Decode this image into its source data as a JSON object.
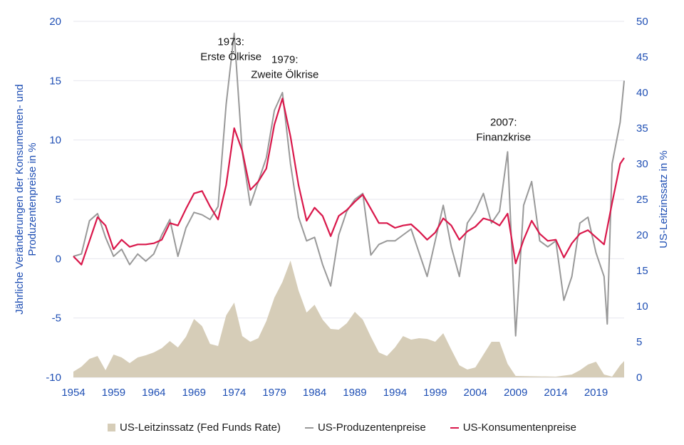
{
  "chart_data": {
    "type": "line",
    "x_range": [
      1954,
      2022.5
    ],
    "x_ticks": [
      "1954",
      "1959",
      "1964",
      "1969",
      "1974",
      "1979",
      "1984",
      "1989",
      "1994",
      "1999",
      "2004",
      "2009",
      "2014",
      "2019"
    ],
    "y_left": {
      "label": "Jährliche Veränderungen der Konsumenten- und Produzentenpreise in %",
      "lim": [
        -10,
        20
      ],
      "ticks": [
        "-10",
        "-5",
        "0",
        "5",
        "10",
        "15",
        "20"
      ]
    },
    "y_right": {
      "label": "US-Leitzinssatz in %",
      "lim": [
        0,
        50
      ],
      "ticks": [
        "0",
        "5",
        "10",
        "15",
        "20",
        "25",
        "30",
        "35",
        "40",
        "45",
        "50"
      ]
    },
    "colors": {
      "axis_text": "#1f4fb4",
      "area": "#d6cdb8",
      "ppi": "#999999",
      "cpi": "#d9184b",
      "grid": "#e6e6ee"
    },
    "legend_position": "bottom",
    "series": [
      {
        "name": "US-Leitzinssatz (Fed Funds Rate)",
        "axis": "right",
        "style": "area",
        "points": [
          [
            1954,
            0.8
          ],
          [
            1955,
            1.5
          ],
          [
            1956,
            2.6
          ],
          [
            1957,
            3.0
          ],
          [
            1958,
            1.0
          ],
          [
            1959,
            3.2
          ],
          [
            1960,
            2.8
          ],
          [
            1961,
            2.0
          ],
          [
            1962,
            2.8
          ],
          [
            1963,
            3.1
          ],
          [
            1964,
            3.5
          ],
          [
            1965,
            4.1
          ],
          [
            1966,
            5.1
          ],
          [
            1967,
            4.2
          ],
          [
            1968,
            5.7
          ],
          [
            1969,
            8.2
          ],
          [
            1970,
            7.2
          ],
          [
            1971,
            4.7
          ],
          [
            1972,
            4.4
          ],
          [
            1973,
            8.7
          ],
          [
            1974,
            10.5
          ],
          [
            1975,
            5.8
          ],
          [
            1976,
            5.0
          ],
          [
            1977,
            5.5
          ],
          [
            1978,
            7.9
          ],
          [
            1979,
            11.2
          ],
          [
            1980,
            13.4
          ],
          [
            1981,
            16.4
          ],
          [
            1982,
            12.2
          ],
          [
            1983,
            9.1
          ],
          [
            1984,
            10.2
          ],
          [
            1985,
            8.1
          ],
          [
            1986,
            6.8
          ],
          [
            1987,
            6.7
          ],
          [
            1988,
            7.6
          ],
          [
            1989,
            9.2
          ],
          [
            1990,
            8.1
          ],
          [
            1991,
            5.7
          ],
          [
            1992,
            3.5
          ],
          [
            1993,
            3.0
          ],
          [
            1994,
            4.2
          ],
          [
            1995,
            5.8
          ],
          [
            1996,
            5.3
          ],
          [
            1997,
            5.5
          ],
          [
            1998,
            5.4
          ],
          [
            1999,
            5.0
          ],
          [
            2000,
            6.2
          ],
          [
            2001,
            3.9
          ],
          [
            2002,
            1.7
          ],
          [
            2003,
            1.1
          ],
          [
            2004,
            1.4
          ],
          [
            2005,
            3.2
          ],
          [
            2006,
            5.0
          ],
          [
            2007,
            5.0
          ],
          [
            2008,
            1.9
          ],
          [
            2009,
            0.2
          ],
          [
            2014,
            0.1
          ],
          [
            2016,
            0.4
          ],
          [
            2017,
            1.0
          ],
          [
            2018,
            1.8
          ],
          [
            2019,
            2.2
          ],
          [
            2020,
            0.4
          ],
          [
            2021,
            0.1
          ],
          [
            2022,
            1.7
          ],
          [
            2022.5,
            2.3
          ]
        ]
      },
      {
        "name": "US-Produzentenpreise",
        "axis": "left",
        "style": "line",
        "points": [
          [
            1954,
            0.2
          ],
          [
            1955,
            0.4
          ],
          [
            1956,
            3.2
          ],
          [
            1957,
            3.8
          ],
          [
            1958,
            1.8
          ],
          [
            1959,
            0.2
          ],
          [
            1960,
            0.8
          ],
          [
            1961,
            -0.5
          ],
          [
            1962,
            0.4
          ],
          [
            1963,
            -0.2
          ],
          [
            1964,
            0.4
          ],
          [
            1965,
            2.0
          ],
          [
            1966,
            3.3
          ],
          [
            1967,
            0.2
          ],
          [
            1968,
            2.6
          ],
          [
            1969,
            3.9
          ],
          [
            1970,
            3.7
          ],
          [
            1971,
            3.3
          ],
          [
            1972,
            4.4
          ],
          [
            1973,
            13.0
          ],
          [
            1974,
            19.0
          ],
          [
            1975,
            9.0
          ],
          [
            1976,
            4.5
          ],
          [
            1977,
            6.5
          ],
          [
            1978,
            8.5
          ],
          [
            1979,
            12.5
          ],
          [
            1980,
            14.0
          ],
          [
            1981,
            8.0
          ],
          [
            1982,
            3.5
          ],
          [
            1983,
            1.5
          ],
          [
            1984,
            1.8
          ],
          [
            1985,
            -0.5
          ],
          [
            1986,
            -2.3
          ],
          [
            1987,
            2.0
          ],
          [
            1988,
            4.0
          ],
          [
            1989,
            5.0
          ],
          [
            1990,
            5.5
          ],
          [
            1991,
            0.3
          ],
          [
            1992,
            1.2
          ],
          [
            1993,
            1.5
          ],
          [
            1994,
            1.5
          ],
          [
            1995,
            2.0
          ],
          [
            1996,
            2.5
          ],
          [
            1997,
            0.5
          ],
          [
            1998,
            -1.5
          ],
          [
            1999,
            1.5
          ],
          [
            2000,
            4.5
          ],
          [
            2001,
            1.0
          ],
          [
            2002,
            -1.5
          ],
          [
            2003,
            3.0
          ],
          [
            2004,
            4.0
          ],
          [
            2005,
            5.5
          ],
          [
            2006,
            3.0
          ],
          [
            2007,
            4.0
          ],
          [
            2008,
            9.0
          ],
          [
            2009,
            -6.5
          ],
          [
            2010,
            4.5
          ],
          [
            2011,
            6.5
          ],
          [
            2012,
            1.5
          ],
          [
            2013,
            1.0
          ],
          [
            2014,
            1.5
          ],
          [
            2015,
            -3.5
          ],
          [
            2016,
            -1.5
          ],
          [
            2017,
            3.0
          ],
          [
            2018,
            3.5
          ],
          [
            2019,
            0.5
          ],
          [
            2020,
            -1.5
          ],
          [
            2020.4,
            -5.5
          ],
          [
            2021,
            8.0
          ],
          [
            2022,
            11.5
          ],
          [
            2022.5,
            15.0
          ]
        ]
      },
      {
        "name": "US-Konsumentenpreise",
        "axis": "left",
        "style": "line",
        "points": [
          [
            1954,
            0.2
          ],
          [
            1955,
            -0.5
          ],
          [
            1956,
            1.5
          ],
          [
            1957,
            3.5
          ],
          [
            1958,
            2.8
          ],
          [
            1959,
            0.8
          ],
          [
            1960,
            1.6
          ],
          [
            1961,
            1.0
          ],
          [
            1962,
            1.2
          ],
          [
            1963,
            1.2
          ],
          [
            1964,
            1.3
          ],
          [
            1965,
            1.6
          ],
          [
            1966,
            3.0
          ],
          [
            1967,
            2.8
          ],
          [
            1968,
            4.2
          ],
          [
            1969,
            5.5
          ],
          [
            1970,
            5.7
          ],
          [
            1971,
            4.4
          ],
          [
            1972,
            3.3
          ],
          [
            1973,
            6.2
          ],
          [
            1974,
            11.0
          ],
          [
            1975,
            9.1
          ],
          [
            1976,
            5.8
          ],
          [
            1977,
            6.5
          ],
          [
            1978,
            7.6
          ],
          [
            1979,
            11.3
          ],
          [
            1980,
            13.5
          ],
          [
            1981,
            10.3
          ],
          [
            1982,
            6.2
          ],
          [
            1983,
            3.2
          ],
          [
            1984,
            4.3
          ],
          [
            1985,
            3.6
          ],
          [
            1986,
            1.9
          ],
          [
            1987,
            3.6
          ],
          [
            1988,
            4.1
          ],
          [
            1989,
            4.8
          ],
          [
            1990,
            5.4
          ],
          [
            1991,
            4.2
          ],
          [
            1992,
            3.0
          ],
          [
            1993,
            3.0
          ],
          [
            1994,
            2.6
          ],
          [
            1995,
            2.8
          ],
          [
            1996,
            2.9
          ],
          [
            1997,
            2.3
          ],
          [
            1998,
            1.6
          ],
          [
            1999,
            2.2
          ],
          [
            2000,
            3.4
          ],
          [
            2001,
            2.8
          ],
          [
            2002,
            1.6
          ],
          [
            2003,
            2.3
          ],
          [
            2004,
            2.7
          ],
          [
            2005,
            3.4
          ],
          [
            2006,
            3.2
          ],
          [
            2007,
            2.8
          ],
          [
            2008,
            3.8
          ],
          [
            2009,
            -0.4
          ],
          [
            2010,
            1.6
          ],
          [
            2011,
            3.2
          ],
          [
            2012,
            2.1
          ],
          [
            2013,
            1.5
          ],
          [
            2014,
            1.6
          ],
          [
            2015,
            0.1
          ],
          [
            2016,
            1.3
          ],
          [
            2017,
            2.1
          ],
          [
            2018,
            2.4
          ],
          [
            2019,
            1.8
          ],
          [
            2020,
            1.2
          ],
          [
            2021,
            4.7
          ],
          [
            2022,
            8.0
          ],
          [
            2022.5,
            8.5
          ]
        ]
      }
    ],
    "annotations": [
      {
        "lines": [
          "1973:",
          "Erste Ölkrise"
        ],
        "x": 1973.6,
        "y": 18.0
      },
      {
        "lines": [
          "1979:",
          "Zweite Ölkrise"
        ],
        "x": 1980.3,
        "y": 16.5
      },
      {
        "lines": [
          "2007:",
          "Finanzkrise"
        ],
        "x": 2007.5,
        "y": 11.2
      }
    ]
  }
}
